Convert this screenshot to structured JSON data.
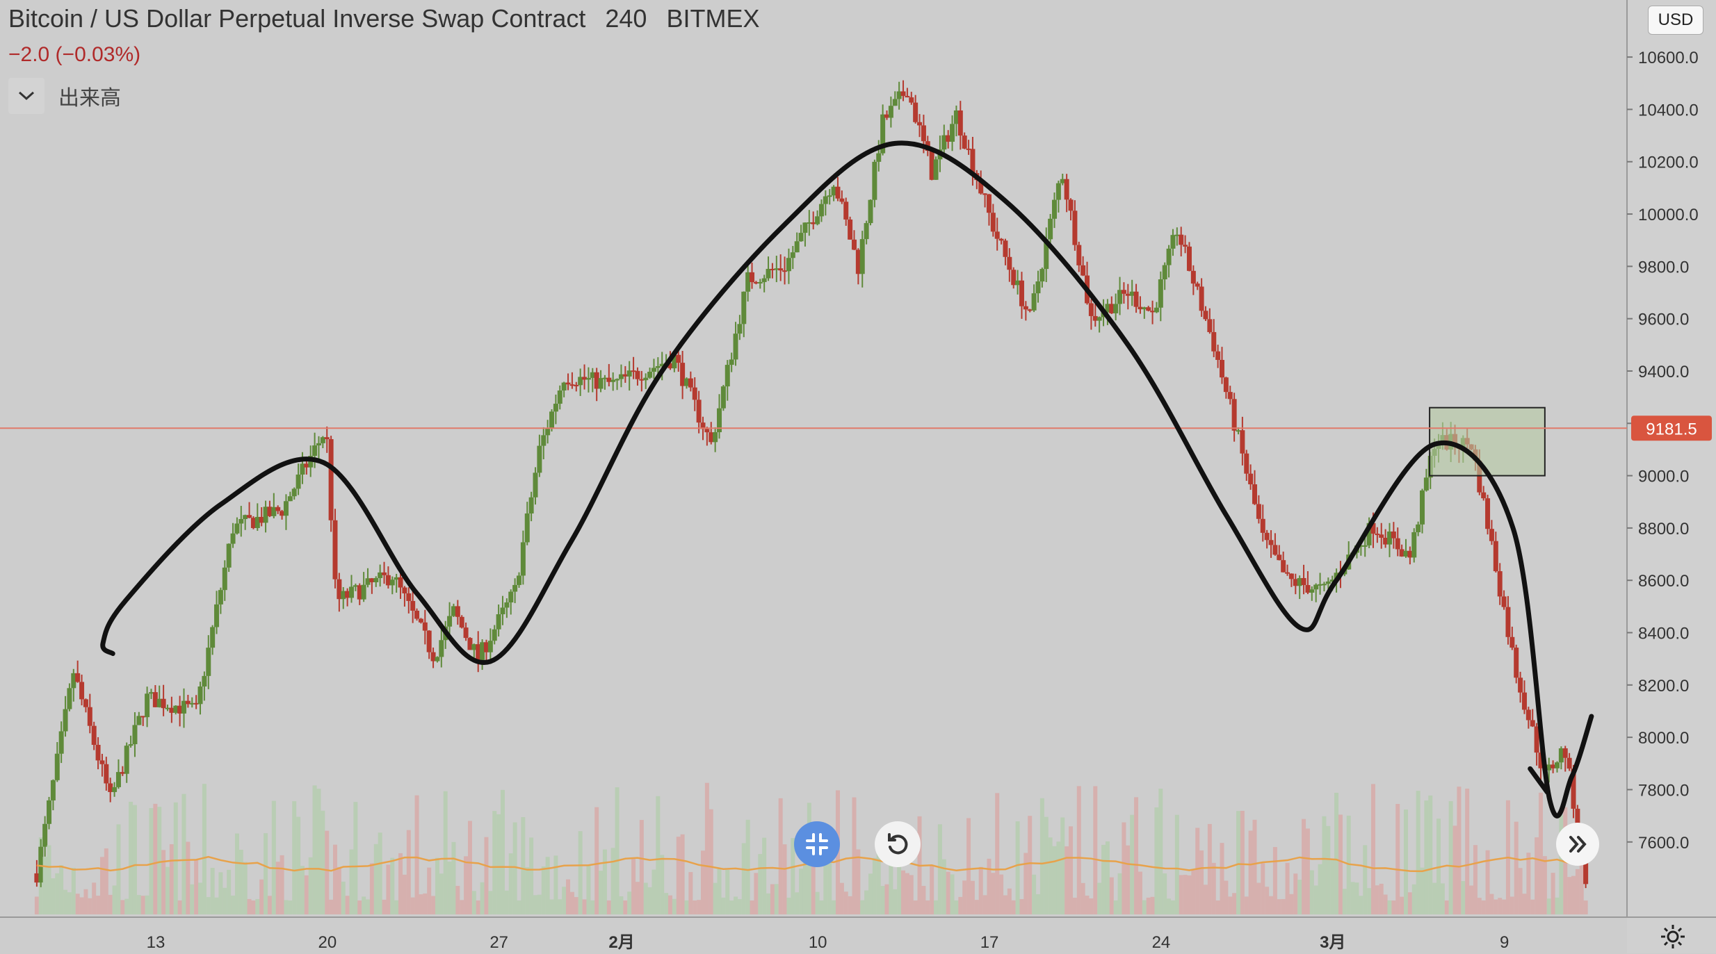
{
  "header": {
    "symbol": "Bitcoin / US Dollar Perpetual Inverse Swap Contract",
    "interval": "240",
    "exchange": "BITMEX",
    "change": "−2.0 (−0.03%)"
  },
  "volume_indicator": {
    "label": "出来高",
    "toggle_icon": "chevron-down-icon"
  },
  "currency_button": "USD",
  "controls": {
    "fit_icon": "collapse-arrows-icon",
    "reset_icon": "rotate-ccw-icon",
    "scroll_icon": "double-chevron-right-icon",
    "settings_icon": "gear-icon"
  },
  "colors": {
    "background": "#cdcdcd",
    "up": "#5f8a3a",
    "down": "#b53a2f",
    "price_line": "#e07a6a",
    "price_label_bg": "#d9553f",
    "volume_ma": "#e8a24a",
    "drawing": "#111111",
    "highlight_box": "#b5c9a4"
  },
  "chart_data": {
    "type": "candlestick",
    "ylim": [
      7440,
      10680
    ],
    "y_ticks": [
      "10600.0",
      "10400.0",
      "10200.0",
      "10000.0",
      "9800.0",
      "9600.0",
      "9400.0",
      "9200.0",
      "9000.0",
      "8800.0",
      "8600.0",
      "8400.0",
      "8200.0",
      "8000.0",
      "7800.0",
      "7600.0"
    ],
    "y_tick_values": [
      10600,
      10400,
      10200,
      10000,
      9800,
      9600,
      9400,
      9200,
      9000,
      8800,
      8600,
      8400,
      8200,
      8000,
      7800,
      7600
    ],
    "x_ticks": [
      "13",
      "20",
      "27",
      "2月",
      "10",
      "17",
      "24",
      "3月",
      "9"
    ],
    "x_tick_days": [
      4.85,
      11.85,
      18.85,
      23.85,
      31.85,
      38.85,
      45.85,
      52.85,
      59.85
    ],
    "x_range_days": [
      -1.5,
      64.85
    ],
    "current_price": 9181.5,
    "current_price_label": "9181.5",
    "volume_ma_level": 0.62,
    "anchors": [
      [
        0,
        7480
      ],
      [
        1.5,
        8250
      ],
      [
        3,
        7760
      ],
      [
        4.5,
        8150
      ],
      [
        6.5,
        8100
      ],
      [
        8,
        8800
      ],
      [
        10,
        8870
      ],
      [
        11.8,
        9180
      ],
      [
        12.2,
        8520
      ],
      [
        14.5,
        8620
      ],
      [
        16.2,
        8310
      ],
      [
        17,
        8480
      ],
      [
        18,
        8300
      ],
      [
        19.5,
        8560
      ],
      [
        20.5,
        9100
      ],
      [
        21.5,
        9380
      ],
      [
        23.5,
        9350
      ],
      [
        26,
        9450
      ],
      [
        27.5,
        9120
      ],
      [
        29,
        9750
      ],
      [
        30.5,
        9800
      ],
      [
        32.5,
        10130
      ],
      [
        33.5,
        9800
      ],
      [
        34.5,
        10350
      ],
      [
        35.5,
        10480
      ],
      [
        36.5,
        10160
      ],
      [
        37.5,
        10380
      ],
      [
        39,
        9950
      ],
      [
        40.5,
        9600
      ],
      [
        41.8,
        10170
      ],
      [
        43,
        9600
      ],
      [
        44.5,
        9700
      ],
      [
        45.5,
        9620
      ],
      [
        46.5,
        9940
      ],
      [
        48,
        9500
      ],
      [
        49,
        9140
      ],
      [
        50,
        8760
      ],
      [
        51,
        8600
      ],
      [
        52.5,
        8560
      ],
      [
        54.5,
        8810
      ],
      [
        56,
        8690
      ],
      [
        57,
        9130
      ],
      [
        58.5,
        9120
      ],
      [
        59.2,
        8800
      ],
      [
        60.3,
        8260
      ],
      [
        61.5,
        7850
      ],
      [
        62.3,
        7960
      ],
      [
        63.2,
        7450
      ]
    ],
    "drawn_curves": [
      [
        [
          3.1,
          8320
        ],
        [
          2.7,
          8360
        ],
        [
          3.6,
          8520
        ],
        [
          7.5,
          8890
        ],
        [
          11.7,
          9050
        ],
        [
          15.5,
          8550
        ],
        [
          18.5,
          8290
        ],
        [
          21.8,
          8750
        ],
        [
          25.5,
          9400
        ],
        [
          30.5,
          9960
        ],
        [
          35,
          10270
        ],
        [
          39.5,
          10050
        ],
        [
          44.5,
          9500
        ],
        [
          48.5,
          8850
        ],
        [
          51.5,
          8420
        ],
        [
          53,
          8600
        ],
        [
          57,
          9120
        ],
        [
          60.2,
          8800
        ],
        [
          61.7,
          7760
        ],
        [
          62.6,
          7850
        ],
        [
          63.4,
          8080
        ]
      ],
      [
        [
          60.9,
          7880
        ],
        [
          61.6,
          7790
        ]
      ]
    ],
    "highlight_box": {
      "day_from": 56.8,
      "day_to": 61.5,
      "price_from": 9000,
      "price_to": 9260
    }
  }
}
